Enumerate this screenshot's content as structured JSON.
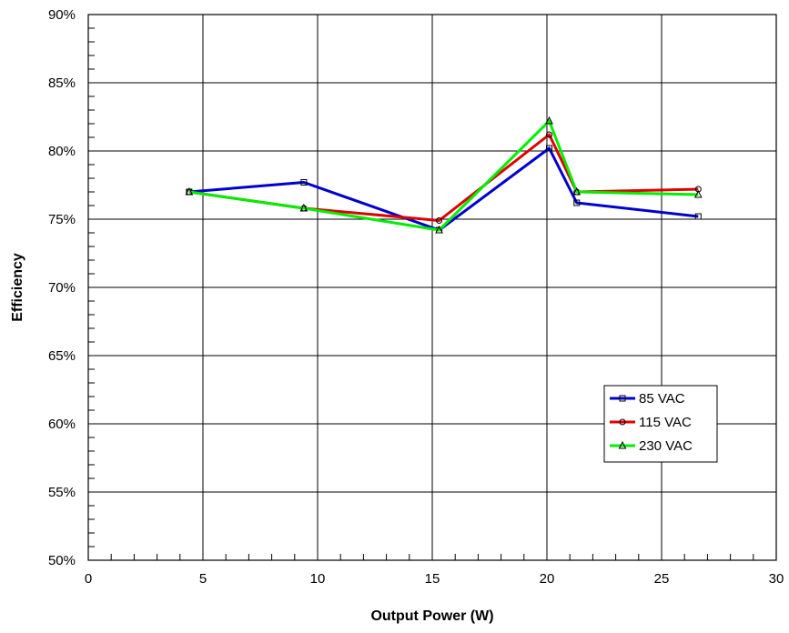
{
  "chart_data": {
    "type": "line",
    "title": "",
    "xlabel": "Output Power (W)",
    "ylabel": "Efficiency",
    "xlim": [
      0,
      30
    ],
    "ylim": [
      0.5,
      0.9
    ],
    "x_ticks": [
      0,
      5,
      10,
      15,
      20,
      25,
      30
    ],
    "x_tick_labels": [
      "0",
      "5",
      "10",
      "15",
      "20",
      "25",
      "30"
    ],
    "y_ticks": [
      0.5,
      0.55,
      0.6,
      0.65,
      0.7,
      0.75,
      0.8,
      0.85,
      0.9
    ],
    "y_tick_labels": [
      "50%",
      "55%",
      "60%",
      "65%",
      "70%",
      "75%",
      "80%",
      "85%",
      "90%"
    ],
    "grid": true,
    "legend_position": "lower-right",
    "series": [
      {
        "name": "85 VAC",
        "color": "#0000cc",
        "marker": "square",
        "x": [
          4.4,
          9.4,
          15.3,
          20.1,
          21.3,
          26.6
        ],
        "y": [
          0.77,
          0.777,
          0.742,
          0.802,
          0.762,
          0.752
        ]
      },
      {
        "name": "115 VAC",
        "color": "#dd0000",
        "marker": "circle",
        "x": [
          4.4,
          9.4,
          15.3,
          20.1,
          21.3,
          26.6
        ],
        "y": [
          0.77,
          0.758,
          0.749,
          0.812,
          0.77,
          0.772
        ]
      },
      {
        "name": "230 VAC",
        "color": "#00ee00",
        "marker": "triangle",
        "x": [
          4.4,
          9.4,
          15.3,
          20.1,
          21.3,
          26.6
        ],
        "y": [
          0.77,
          0.758,
          0.742,
          0.822,
          0.77,
          0.768
        ]
      }
    ]
  }
}
